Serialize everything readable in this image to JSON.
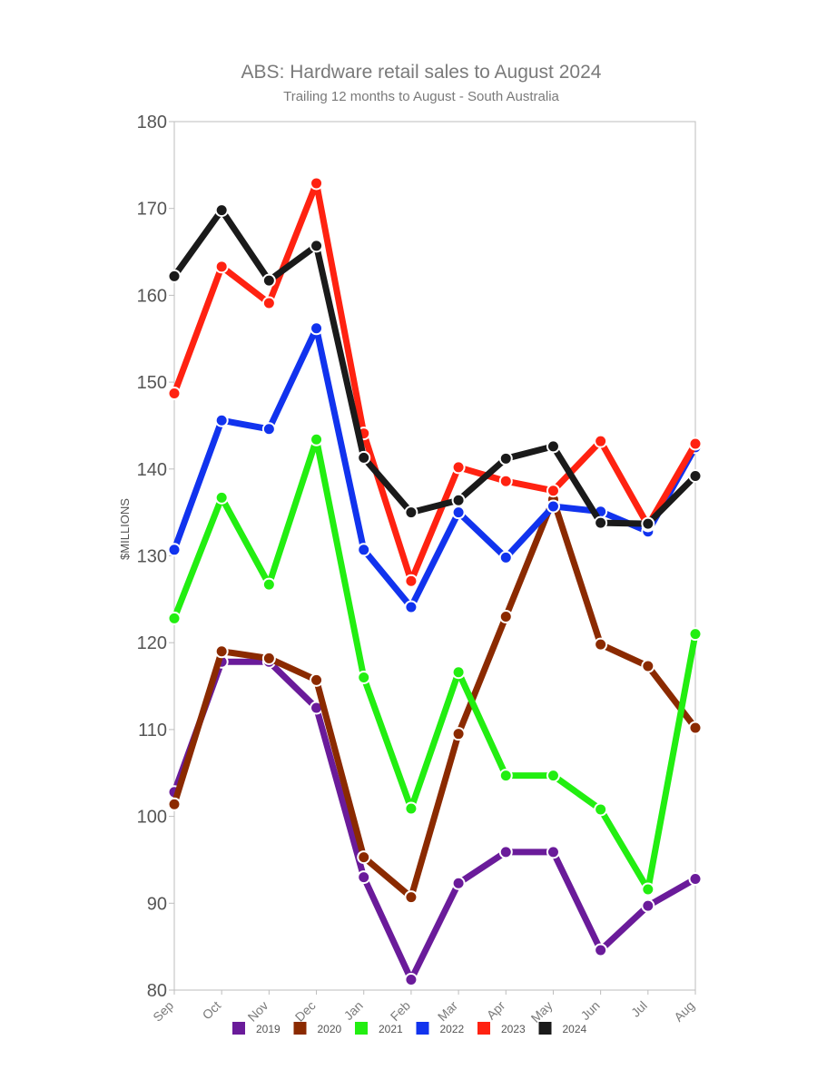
{
  "chart_data": {
    "type": "line",
    "title": "ABS: Hardware retail sales to August 2024",
    "subtitle": "Trailing 12 months to August - South Australia",
    "xlabel": "",
    "ylabel": "$MILLIONS",
    "categories": [
      "Sep",
      "Oct",
      "Nov",
      "Dec",
      "Jan",
      "Feb",
      "Mar",
      "Apr",
      "May",
      "Jun",
      "Jul",
      "Aug"
    ],
    "ylim": [
      80,
      180
    ],
    "yticks": [
      80,
      90,
      100,
      110,
      120,
      130,
      140,
      150,
      160,
      170,
      180
    ],
    "grid": false,
    "legend_position": "bottom",
    "series": [
      {
        "name": "2019",
        "color": "#6a1b9a",
        "values": [
          102.8,
          117.8,
          117.8,
          112.5,
          93.0,
          81.2,
          92.3,
          95.9,
          95.9,
          84.6,
          89.7,
          92.8
        ]
      },
      {
        "name": "2020",
        "color": "#8b2a00",
        "values": [
          101.4,
          119.0,
          118.2,
          115.7,
          95.3,
          90.7,
          109.5,
          123.0,
          136.5,
          119.8,
          117.3,
          110.2
        ]
      },
      {
        "name": "2021",
        "color": "#22ee11",
        "values": [
          122.8,
          136.7,
          126.7,
          143.4,
          116.0,
          100.9,
          116.6,
          104.7,
          104.7,
          100.8,
          91.6,
          121.0
        ]
      },
      {
        "name": "2022",
        "color": "#1133ee",
        "values": [
          130.7,
          145.6,
          144.6,
          156.2,
          130.7,
          124.1,
          135.0,
          129.8,
          135.7,
          135.1,
          132.8,
          142.5
        ]
      },
      {
        "name": "2023",
        "color": "#ff2211",
        "values": [
          148.7,
          163.3,
          159.1,
          172.9,
          144.1,
          127.1,
          140.2,
          138.6,
          137.5,
          143.2,
          133.5,
          142.9
        ]
      },
      {
        "name": "2024",
        "color": "#1a1a1a",
        "values": [
          162.2,
          169.8,
          161.7,
          165.7,
          141.3,
          135.0,
          136.4,
          141.2,
          142.6,
          133.8,
          133.7,
          139.2
        ]
      }
    ]
  }
}
